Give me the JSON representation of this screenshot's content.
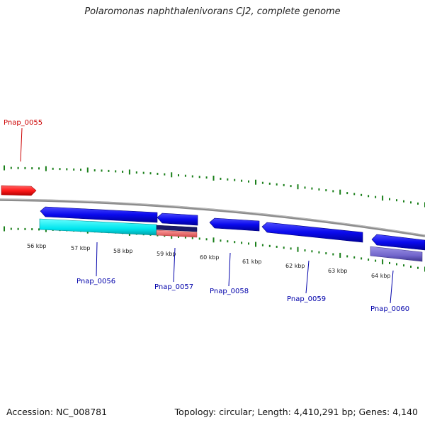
{
  "title": "Polaromonas naphthalenivorans CJ2, complete genome",
  "accession": "Accession: NC_008781",
  "topology": "Topology: circular; Length: 4,410,291 bp; Genes: 4,140",
  "ticks": {
    "color": "#1a7f1a",
    "labels": [
      "56 kbp",
      "57 kbp",
      "58 kbp",
      "59 kbp",
      "60 kbp",
      "61 kbp",
      "62 kbp",
      "63 kbp",
      "64 kbp"
    ]
  },
  "backbone_color": "#8c8c8c",
  "genes": [
    {
      "name": "Pnap_0055",
      "color": "#cc0000"
    },
    {
      "name": "Pnap_0056",
      "color": "#0000aa"
    },
    {
      "name": "Pnap_0057",
      "color": "#0000aa"
    },
    {
      "name": "Pnap_0058",
      "color": "#0000aa"
    },
    {
      "name": "Pnap_0059",
      "color": "#0000aa"
    },
    {
      "name": "Pnap_0060",
      "color": "#0000aa"
    }
  ],
  "colors": {
    "cds_forward": "#ff1a1a",
    "cds_reverse": "#0a0aee",
    "feature_cyan": "#00e5ee",
    "feature_salmon": "#f07070",
    "feature_navy": "#1a1a66",
    "feature_purple": "#7266cc"
  }
}
